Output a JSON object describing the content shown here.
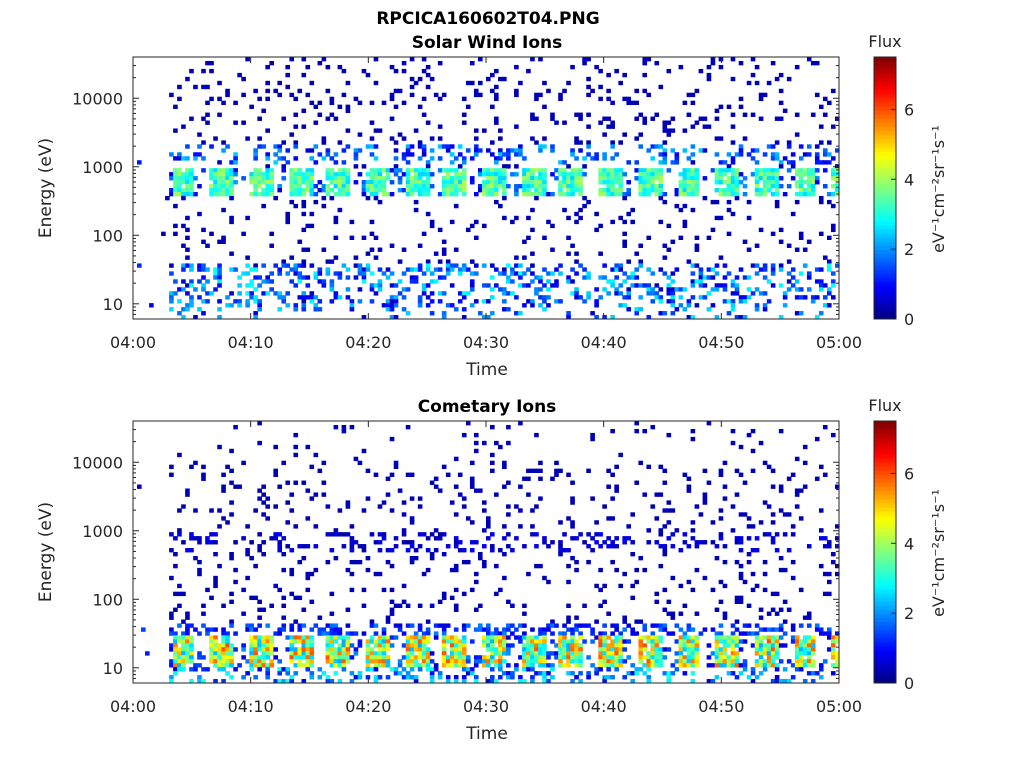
{
  "figure": {
    "title": "RPCICA160602T04.PNG"
  },
  "colorbar": {
    "title": "Flux",
    "label": "eV⁻¹cm⁻²sr⁻¹s⁻¹",
    "ticks": [
      0,
      2,
      4,
      6
    ],
    "range": [
      0,
      7.5
    ],
    "colormap": "jet"
  },
  "chart_data": [
    {
      "type": "heatmap",
      "title": "Solar Wind Ions",
      "xlabel": "Time",
      "ylabel": "Energy (eV)",
      "x_range": [
        "04:00",
        "05:00"
      ],
      "x_ticks": [
        "04:00",
        "04:10",
        "04:20",
        "04:30",
        "04:40",
        "04:50",
        "05:00"
      ],
      "y_scale": "log",
      "y_range": [
        6,
        40000
      ],
      "y_ticks": [
        10,
        100,
        1000,
        10000
      ],
      "y_tick_labels": [
        "10",
        "100",
        "1000",
        "10000"
      ],
      "value_label": "Flux",
      "bands": [
        {
          "energy_range": [
            400,
            900
          ],
          "peak_flux": 4,
          "description_minutes": [
            3.5,
            7,
            10,
            13,
            16.5,
            18,
            23,
            26,
            29,
            32,
            38,
            41,
            45,
            48,
            51,
            55,
            58
          ]
        },
        {
          "energy_range": [
            10,
            40
          ],
          "peak_flux": 3
        }
      ]
    },
    {
      "type": "heatmap",
      "title": "Cometary Ions",
      "xlabel": "Time",
      "ylabel": "Energy (eV)",
      "x_range": [
        "04:00",
        "05:00"
      ],
      "x_ticks": [
        "04:00",
        "04:10",
        "04:20",
        "04:30",
        "04:40",
        "04:50",
        "05:00"
      ],
      "y_scale": "log",
      "y_range": [
        6,
        40000
      ],
      "y_ticks": [
        10,
        100,
        1000,
        10000
      ],
      "y_tick_labels": [
        "10",
        "100",
        "1000",
        "10000"
      ],
      "value_label": "Flux",
      "bands": [
        {
          "energy_range": [
            10,
            30
          ],
          "peak_flux": 6
        },
        {
          "energy_range": [
            500,
            900
          ],
          "peak_flux": 1
        }
      ]
    }
  ]
}
